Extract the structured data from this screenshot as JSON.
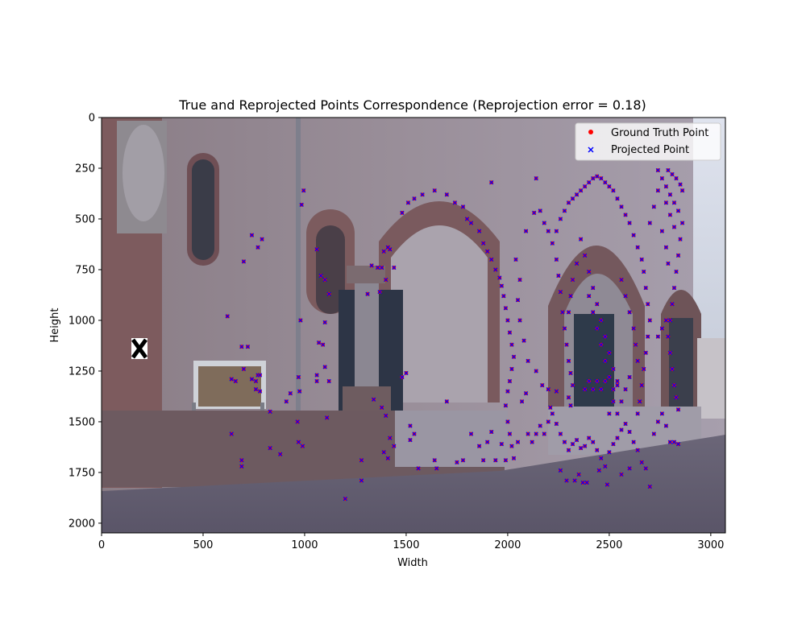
{
  "chart_data": {
    "type": "scatter",
    "title": "True and Reprojected Points Correspondence (Reprojection error = 0.18)",
    "xlabel": "Width",
    "ylabel": "Height",
    "xlim": [
      0,
      3072
    ],
    "ylim": [
      2048,
      0
    ],
    "xticks": [
      0,
      500,
      1000,
      1500,
      2000,
      2500,
      3000
    ],
    "yticks": [
      0,
      250,
      500,
      750,
      1000,
      1250,
      1500,
      1750,
      2000
    ],
    "background": "photo of a sandstone church portal with arched doorways, statue and cobblestone square",
    "legend": {
      "position": "top-right",
      "entries": [
        {
          "label": "Ground Truth Point",
          "marker": "dot",
          "color": "#ff0000"
        },
        {
          "label": "Projected Point",
          "marker": "x",
          "color": "#0000ff"
        }
      ]
    },
    "series": [
      {
        "name": "Ground Truth Point",
        "color": "#ff0000",
        "points": [
          [
            995,
            360
          ],
          [
            985,
            430
          ],
          [
            980,
            1000
          ],
          [
            970,
            1280
          ],
          [
            975,
            1350
          ],
          [
            965,
            1500
          ],
          [
            970,
            1600
          ],
          [
            990,
            1620
          ],
          [
            620,
            980
          ],
          [
            640,
            1290
          ],
          [
            660,
            1300
          ],
          [
            690,
            1130
          ],
          [
            720,
            1130
          ],
          [
            700,
            1240
          ],
          [
            740,
            1290
          ],
          [
            760,
            1300
          ],
          [
            770,
            1270
          ],
          [
            760,
            1340
          ],
          [
            780,
            1350
          ],
          [
            640,
            1560
          ],
          [
            690,
            1690
          ],
          [
            690,
            1720
          ],
          [
            830,
            1450
          ],
          [
            830,
            1630
          ],
          [
            880,
            1660
          ],
          [
            740,
            580
          ],
          [
            770,
            640
          ],
          [
            790,
            600
          ],
          [
            700,
            710
          ],
          [
            780,
            1270
          ],
          [
            910,
            1400
          ],
          [
            930,
            1360
          ],
          [
            1060,
            650
          ],
          [
            1080,
            780
          ],
          [
            1100,
            800
          ],
          [
            1120,
            870
          ],
          [
            1100,
            1010
          ],
          [
            1090,
            1120
          ],
          [
            1100,
            1230
          ],
          [
            1060,
            1300
          ],
          [
            1120,
            1300
          ],
          [
            1110,
            1480
          ],
          [
            1060,
            1270
          ],
          [
            1070,
            1110
          ],
          [
            1200,
            1880
          ],
          [
            1280,
            1690
          ],
          [
            1280,
            1790
          ],
          [
            1310,
            870
          ],
          [
            1330,
            730
          ],
          [
            1360,
            740
          ],
          [
            1380,
            740
          ],
          [
            1390,
            660
          ],
          [
            1410,
            640
          ],
          [
            1420,
            650
          ],
          [
            1440,
            740
          ],
          [
            1400,
            800
          ],
          [
            1370,
            860
          ],
          [
            1340,
            1390
          ],
          [
            1380,
            1430
          ],
          [
            1400,
            1470
          ],
          [
            1420,
            1580
          ],
          [
            1440,
            1620
          ],
          [
            1390,
            1650
          ],
          [
            1410,
            1680
          ],
          [
            1480,
            1280
          ],
          [
            1500,
            1260
          ],
          [
            1520,
            1520
          ],
          [
            1520,
            1590
          ],
          [
            1540,
            1560
          ],
          [
            1560,
            1730
          ],
          [
            1640,
            1690
          ],
          [
            1650,
            1730
          ],
          [
            1700,
            1400
          ],
          [
            1750,
            1700
          ],
          [
            1780,
            1690
          ],
          [
            1820,
            1560
          ],
          [
            1860,
            1620
          ],
          [
            1880,
            1690
          ],
          [
            1900,
            1600
          ],
          [
            1920,
            1550
          ],
          [
            1940,
            1690
          ],
          [
            1970,
            1610
          ],
          [
            1990,
            1690
          ],
          [
            1480,
            470
          ],
          [
            1510,
            420
          ],
          [
            1540,
            400
          ],
          [
            1580,
            380
          ],
          [
            1640,
            360
          ],
          [
            1700,
            380
          ],
          [
            1740,
            420
          ],
          [
            1780,
            440
          ],
          [
            1800,
            500
          ],
          [
            1820,
            520
          ],
          [
            1860,
            560
          ],
          [
            1880,
            620
          ],
          [
            1900,
            660
          ],
          [
            1920,
            700
          ],
          [
            1940,
            750
          ],
          [
            1960,
            790
          ],
          [
            1970,
            830
          ],
          [
            1980,
            880
          ],
          [
            1990,
            940
          ],
          [
            2000,
            1000
          ],
          [
            2010,
            1060
          ],
          [
            2020,
            1120
          ],
          [
            2030,
            1180
          ],
          [
            2020,
            1240
          ],
          [
            2010,
            1300
          ],
          [
            2000,
            1350
          ],
          [
            1990,
            1420
          ],
          [
            2000,
            1500
          ],
          [
            2010,
            1560
          ],
          [
            2020,
            1620
          ],
          [
            2030,
            1680
          ],
          [
            2050,
            1600
          ],
          [
            2070,
            1400
          ],
          [
            2090,
            1360
          ],
          [
            2100,
            1560
          ],
          [
            2120,
            1600
          ],
          [
            2140,
            1560
          ],
          [
            2160,
            1520
          ],
          [
            2180,
            1560
          ],
          [
            2200,
            1500
          ],
          [
            2220,
            1460
          ],
          [
            2240,
            1510
          ],
          [
            2260,
            1560
          ],
          [
            2280,
            1600
          ],
          [
            2300,
            1640
          ],
          [
            2320,
            1610
          ],
          [
            2340,
            1590
          ],
          [
            2360,
            1630
          ],
          [
            2380,
            1620
          ],
          [
            2400,
            1580
          ],
          [
            2420,
            1600
          ],
          [
            2440,
            1640
          ],
          [
            2460,
            1680
          ],
          [
            2480,
            1720
          ],
          [
            2500,
            1650
          ],
          [
            2520,
            1610
          ],
          [
            2540,
            1580
          ],
          [
            2560,
            1540
          ],
          [
            2580,
            1510
          ],
          [
            2600,
            1550
          ],
          [
            2620,
            1600
          ],
          [
            2640,
            1640
          ],
          [
            2660,
            1700
          ],
          [
            2680,
            1730
          ],
          [
            2700,
            1820
          ],
          [
            2720,
            1560
          ],
          [
            2740,
            1500
          ],
          [
            2760,
            1460
          ],
          [
            2780,
            1520
          ],
          [
            2800,
            1600
          ],
          [
            2820,
            1600
          ],
          [
            2840,
            1610
          ],
          [
            2160,
            460
          ],
          [
            2180,
            520
          ],
          [
            2200,
            560
          ],
          [
            2220,
            620
          ],
          [
            2240,
            700
          ],
          [
            2250,
            780
          ],
          [
            2260,
            860
          ],
          [
            2270,
            960
          ],
          [
            2280,
            1040
          ],
          [
            2290,
            1120
          ],
          [
            2300,
            1200
          ],
          [
            2310,
            1260
          ],
          [
            2320,
            1320
          ],
          [
            2300,
            1380
          ],
          [
            2310,
            1420
          ],
          [
            2240,
            560
          ],
          [
            2260,
            500
          ],
          [
            2280,
            460
          ],
          [
            2300,
            420
          ],
          [
            2320,
            400
          ],
          [
            2340,
            380
          ],
          [
            2360,
            360
          ],
          [
            2380,
            340
          ],
          [
            2400,
            320
          ],
          [
            2420,
            300
          ],
          [
            2440,
            290
          ],
          [
            2460,
            300
          ],
          [
            2480,
            320
          ],
          [
            2500,
            340
          ],
          [
            2520,
            360
          ],
          [
            2540,
            400
          ],
          [
            2560,
            440
          ],
          [
            2580,
            480
          ],
          [
            2600,
            520
          ],
          [
            2620,
            580
          ],
          [
            2640,
            640
          ],
          [
            2660,
            700
          ],
          [
            2670,
            760
          ],
          [
            2680,
            840
          ],
          [
            2690,
            920
          ],
          [
            2700,
            1000
          ],
          [
            2690,
            1080
          ],
          [
            2680,
            1160
          ],
          [
            2670,
            1240
          ],
          [
            2660,
            1320
          ],
          [
            2650,
            1400
          ],
          [
            2640,
            1460
          ],
          [
            2360,
            600
          ],
          [
            2380,
            680
          ],
          [
            2400,
            760
          ],
          [
            2420,
            840
          ],
          [
            2440,
            920
          ],
          [
            2460,
            1000
          ],
          [
            2480,
            1080
          ],
          [
            2500,
            1160
          ],
          [
            2520,
            1240
          ],
          [
            2540,
            1320
          ],
          [
            2520,
            1400
          ],
          [
            2500,
            1460
          ],
          [
            2340,
            720
          ],
          [
            2320,
            800
          ],
          [
            2310,
            880
          ],
          [
            2300,
            960
          ],
          [
            2400,
            880
          ],
          [
            2420,
            960
          ],
          [
            2440,
            1040
          ],
          [
            2460,
            1120
          ],
          [
            2480,
            1200
          ],
          [
            2500,
            1280
          ],
          [
            2560,
            800
          ],
          [
            2580,
            880
          ],
          [
            2600,
            960
          ],
          [
            2620,
            1040
          ],
          [
            2630,
            1120
          ],
          [
            2640,
            1200
          ],
          [
            2600,
            1280
          ],
          [
            2580,
            1340
          ],
          [
            2560,
            1400
          ],
          [
            2540,
            1460
          ],
          [
            2380,
            1340
          ],
          [
            2400,
            1300
          ],
          [
            2420,
            1340
          ],
          [
            2440,
            1300
          ],
          [
            2460,
            1340
          ],
          [
            2480,
            1300
          ],
          [
            2520,
            1340
          ],
          [
            2540,
            1300
          ],
          [
            2740,
            260
          ],
          [
            2760,
            300
          ],
          [
            2780,
            340
          ],
          [
            2800,
            380
          ],
          [
            2820,
            420
          ],
          [
            2840,
            460
          ],
          [
            2860,
            520
          ],
          [
            2850,
            600
          ],
          [
            2840,
            680
          ],
          [
            2830,
            760
          ],
          [
            2820,
            840
          ],
          [
            2810,
            920
          ],
          [
            2800,
            1000
          ],
          [
            2790,
            1080
          ],
          [
            2800,
            1160
          ],
          [
            2810,
            1240
          ],
          [
            2820,
            1320
          ],
          [
            2830,
            1380
          ],
          [
            2840,
            1440
          ],
          [
            2760,
            560
          ],
          [
            2780,
            640
          ],
          [
            2790,
            720
          ],
          [
            2780,
            1000
          ],
          [
            2760,
            1040
          ],
          [
            2740,
            1080
          ],
          [
            2780,
            420
          ],
          [
            2800,
            480
          ],
          [
            2820,
            540
          ],
          [
            2740,
            360
          ],
          [
            2720,
            440
          ],
          [
            2700,
            520
          ],
          [
            2860,
            360
          ],
          [
            2850,
            330
          ],
          [
            2830,
            300
          ],
          [
            2810,
            280
          ],
          [
            2790,
            260
          ],
          [
            1920,
            320
          ],
          [
            2140,
            300
          ],
          [
            2130,
            470
          ],
          [
            2090,
            560
          ],
          [
            2040,
            700
          ],
          [
            2060,
            800
          ],
          [
            2050,
            900
          ],
          [
            2060,
            1000
          ],
          [
            2080,
            1100
          ],
          [
            2100,
            1200
          ],
          [
            2140,
            1250
          ],
          [
            2170,
            1320
          ],
          [
            2200,
            1340
          ],
          [
            2210,
            1430
          ],
          [
            2240,
            1350
          ],
          [
            2290,
            1790
          ],
          [
            2330,
            1790
          ],
          [
            2350,
            1760
          ],
          [
            2370,
            1800
          ],
          [
            2390,
            1800
          ],
          [
            2450,
            1740
          ],
          [
            2490,
            1810
          ],
          [
            2600,
            1730
          ],
          [
            2560,
            1760
          ],
          [
            2260,
            1740
          ]
        ]
      },
      {
        "name": "Projected Point",
        "color": "#0000ff",
        "same_as": "Ground Truth Point",
        "note": "Projected points coincide with ground truth within reprojection error 0.18 px"
      }
    ]
  }
}
